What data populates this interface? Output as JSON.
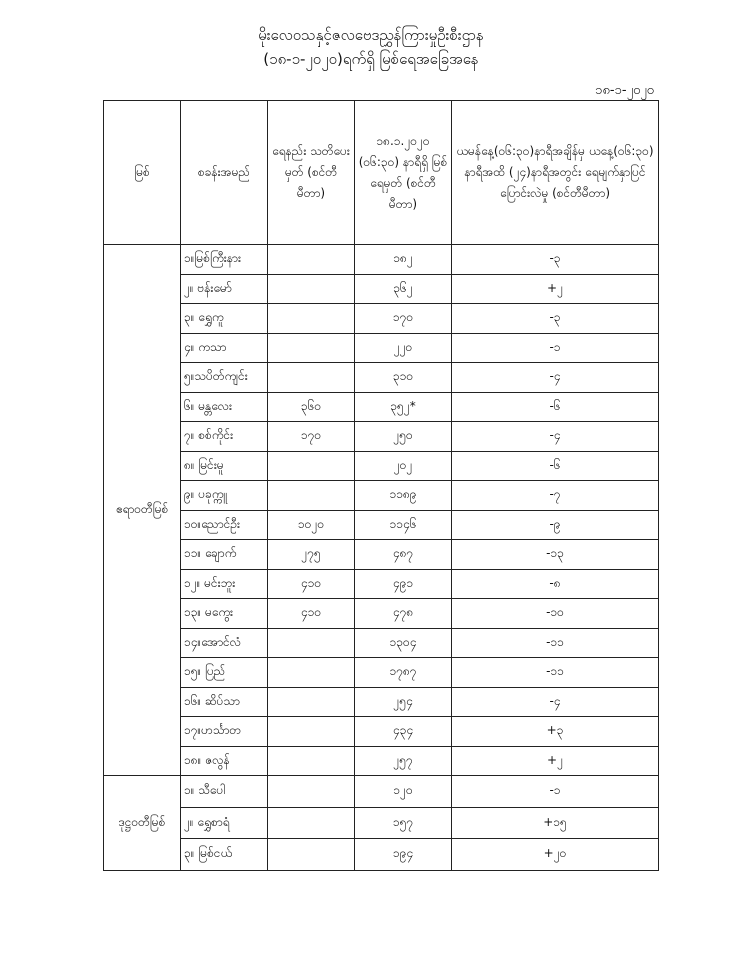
{
  "title": "မိုးလေဝသနှင့်ဇလဗေဒညွှန်ကြားမှုဦးစီးဌာန",
  "subtitle": "(၁၈-၁-၂၀၂၀)ရက်ရှိ မြစ်ရေအခြေအနေ",
  "date": "၁၈-၁-၂၀၂၀",
  "headers": [
    "မြစ်",
    "စခန်းအမည်",
    "ရေနည်း သတိပေးမှတ် (စင်တီမီတာ)",
    "၁၈.၁.၂၀၂၀ (၀၆:၃၀) နာရီရှိ မြစ်ရေမှတ် (စင်တီမီတာ)",
    "ယမန်နေ့(၀၆:၃၀)နာရီအချိန်မှ ယနေ့(၀၆:၃၀) နာရီအထိ (၂၄)နာရီအတွင်း ရေမျက်နှာပြင်ပြောင်းလဲမှု (စင်တီမီတာ)"
  ],
  "rivers": [
    {
      "name": "ဧရာဝတီမြစ်",
      "rows": [
        [
          "၁။မြစ်ကြီးနား",
          "",
          "၁၈၂",
          "-၃"
        ],
        [
          "၂။ ဗန်းမော်",
          "",
          "၃၆၂",
          "+၂"
        ],
        [
          "၃။ ရွှေကူ",
          "",
          "၁၇၀",
          "-၃"
        ],
        [
          "၄။ ကသာ",
          "",
          "၂၂၀",
          "-၁"
        ],
        [
          "၅။သပိတ်ကျင်း",
          "",
          "၃၁၀",
          "-၄"
        ],
        [
          "၆။ မန္တလေး",
          "၃၆၀",
          "၃၅၂*",
          "-၆"
        ],
        [
          "၇။ စစ်ကိုင်း",
          "၁၇၀",
          "၂၅၀",
          "-၄"
        ],
        [
          "၈။ မြင်းမူ",
          "",
          "၂၀၂",
          "-၆"
        ],
        [
          "၉။ ပခုက္ကူ",
          "",
          "၁၁၈၉",
          "-၇"
        ],
        [
          "၁၀။ညောင်ဦး",
          "၁၀၂၀",
          "၁၁၄၆",
          "-၉"
        ],
        [
          "၁၁။ ချောက်",
          "၂၇၅",
          "၄၈၇",
          "-၁၃"
        ],
        [
          "၁၂။ မင်းဘူး",
          "၄၁၀",
          "၄၉၁",
          "-၈"
        ],
        [
          "၁၃။ မကွေး",
          "၄၁၀",
          "၄၇၈",
          "-၁၀"
        ],
        [
          "၁၄။အောင်လံ",
          "",
          "၁၃၀၄",
          "-၁၁"
        ],
        [
          "၁၅။ ပြည်",
          "",
          "၁၇၈၇",
          "-၁၁"
        ],
        [
          "၁၆။ ဆိပ်သာ",
          "",
          "၂၅၄",
          "-၄"
        ],
        [
          "၁၇။ဟင်္သာတ",
          "",
          "၄၃၄",
          "+၃"
        ],
        [
          "၁၈။ ဇလွန်",
          "",
          "၂၅၇",
          "+၂"
        ]
      ]
    },
    {
      "name": "ဒုဋ္ဌဝတီမြစ်",
      "rows": [
        [
          "၁။ သီပေါ",
          "",
          "၁၂၀",
          "-၁"
        ],
        [
          "၂။ ရွှေစာရံ",
          "",
          "၁၅၇",
          "+၁၅"
        ],
        [
          "၃။ မြစ်ငယ်",
          "",
          "၁၉၄",
          "+၂၀"
        ]
      ]
    }
  ]
}
